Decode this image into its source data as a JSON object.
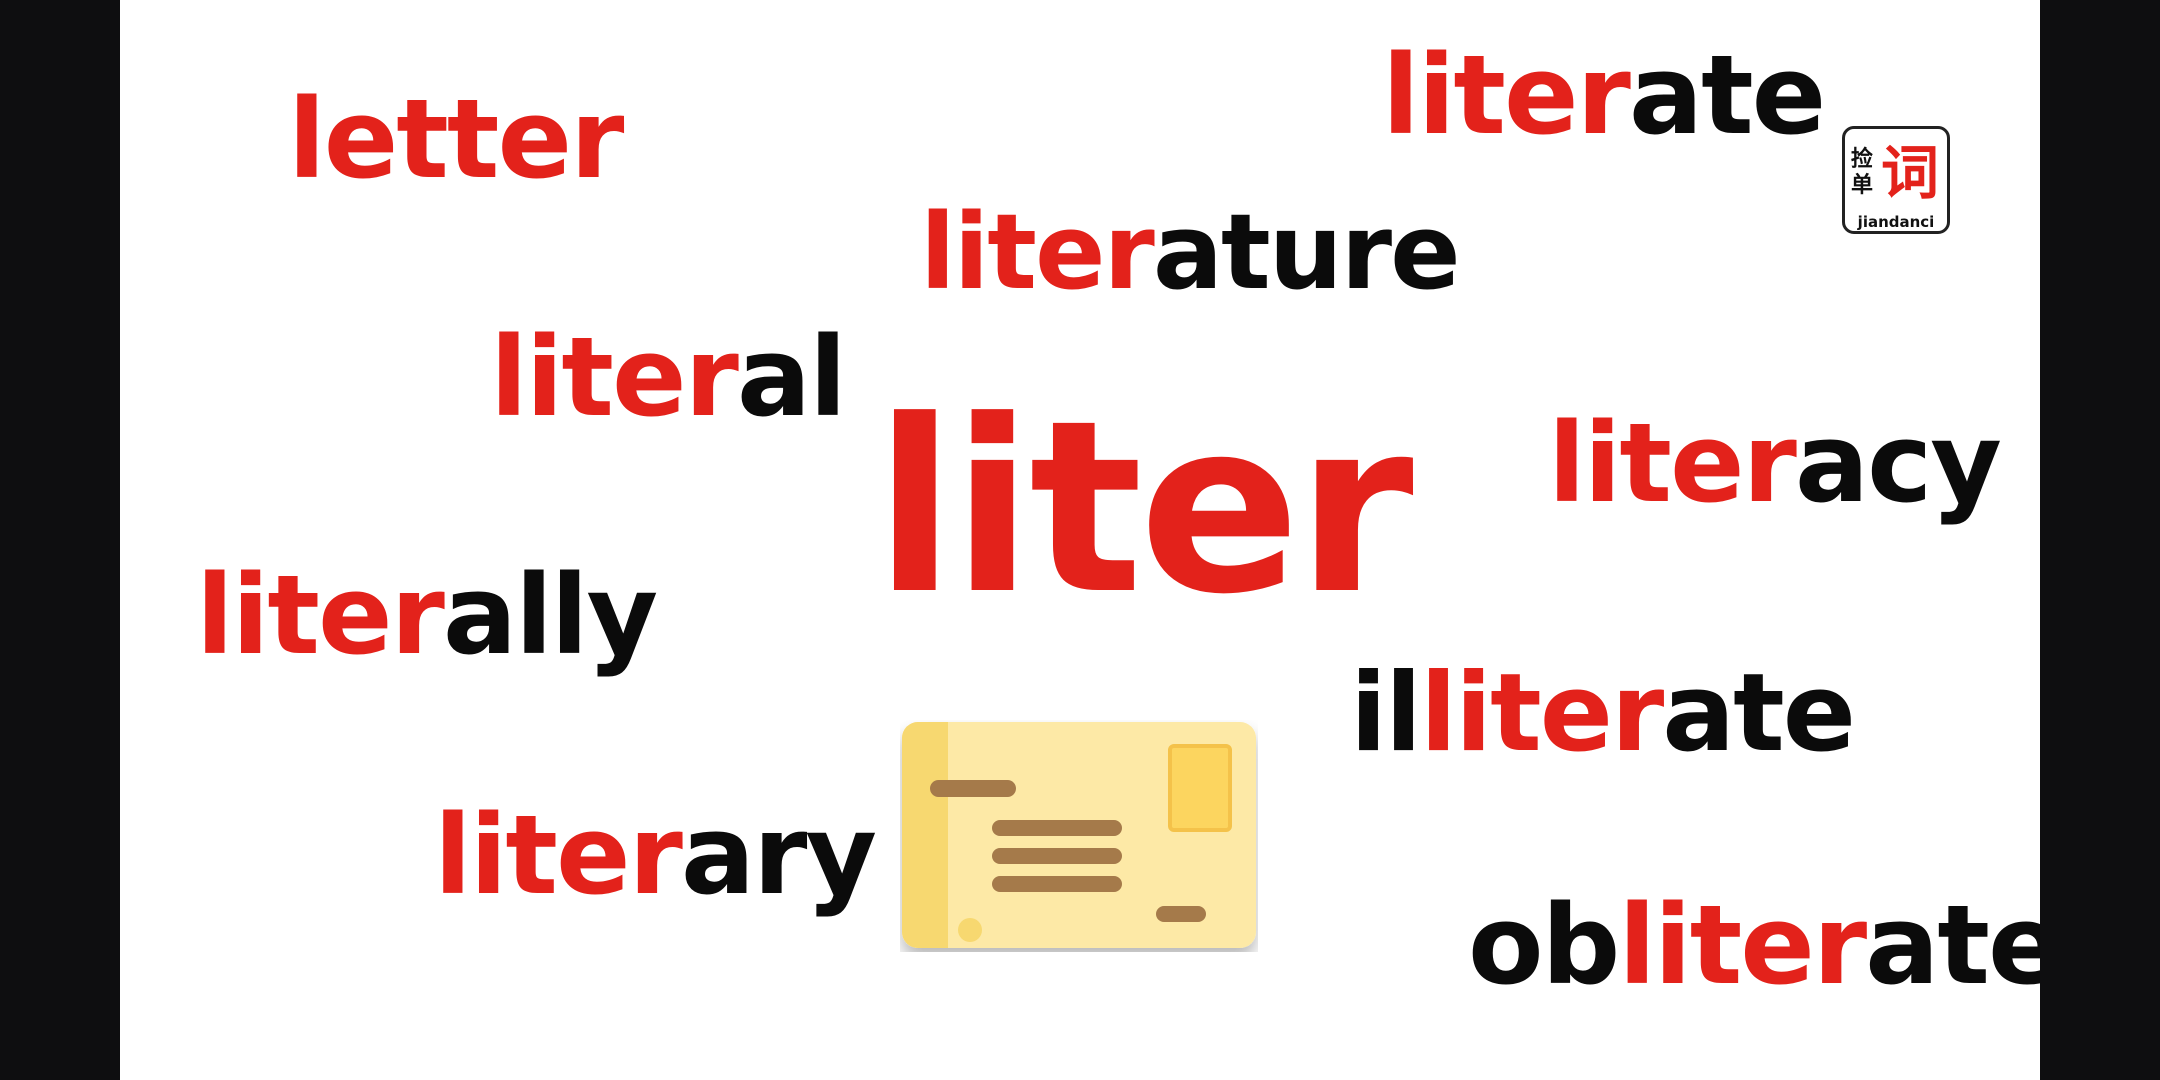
{
  "words": {
    "letter": {
      "red": "letter",
      "black": ""
    },
    "literate": {
      "red": "liter",
      "black": "ate"
    },
    "literature": {
      "red": "liter",
      "black": "ature"
    },
    "literal": {
      "red": "liter",
      "black": "al"
    },
    "liter": {
      "red": "liter",
      "black": ""
    },
    "literacy": {
      "red": "liter",
      "black": "acy"
    },
    "literally": {
      "red": "liter",
      "black": "ally"
    },
    "illiterate": {
      "pre": "il",
      "red": "liter",
      "black": "ate"
    },
    "literary": {
      "red": "liter",
      "black": "ary"
    },
    "obliterate": {
      "pre": "ob",
      "red": "liter",
      "black": "ate"
    }
  },
  "logo": {
    "small": "捡单",
    "big": "词",
    "sub": "jiandanci"
  },
  "colors": {
    "red": "#e3221b",
    "black": "#0b0b0b",
    "card_body": "#fde9a6",
    "card_stripe": "#f7d870",
    "card_lines": "#a57a4a",
    "card_stamp": "#fcd55f"
  },
  "icons": {
    "card": "id-card-icon"
  }
}
